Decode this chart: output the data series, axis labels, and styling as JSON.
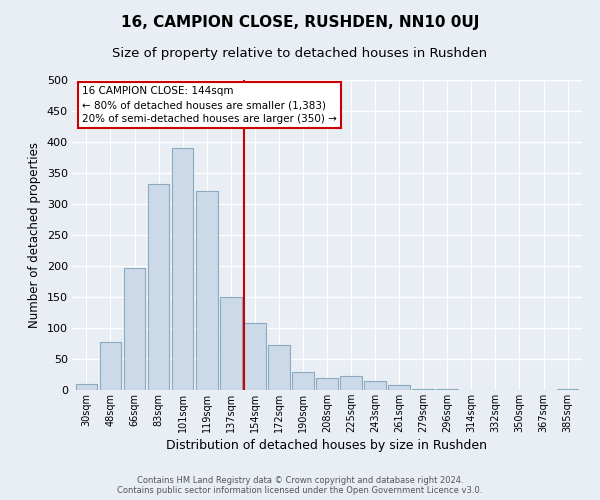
{
  "title": "16, CAMPION CLOSE, RUSHDEN, NN10 0UJ",
  "subtitle": "Size of property relative to detached houses in Rushden",
  "xlabel": "Distribution of detached houses by size in Rushden",
  "ylabel": "Number of detached properties",
  "bar_labels": [
    "30sqm",
    "48sqm",
    "66sqm",
    "83sqm",
    "101sqm",
    "119sqm",
    "137sqm",
    "154sqm",
    "172sqm",
    "190sqm",
    "208sqm",
    "225sqm",
    "243sqm",
    "261sqm",
    "279sqm",
    "296sqm",
    "314sqm",
    "332sqm",
    "350sqm",
    "367sqm",
    "385sqm"
  ],
  "bar_values": [
    10,
    78,
    196,
    333,
    390,
    321,
    150,
    108,
    73,
    29,
    20,
    23,
    15,
    8,
    2,
    1,
    0,
    0,
    0,
    0,
    1
  ],
  "bar_color": "#ccd9e8",
  "bar_edge_color": "#8aaabf",
  "vline_x_index": 7,
  "vline_color": "#cc0000",
  "annotation_line1": "16 CAMPION CLOSE: 144sqm",
  "annotation_line2": "← 80% of detached houses are smaller (1,383)",
  "annotation_line3": "20% of semi-detached houses are larger (350) →",
  "annotation_box_color": "#ffffff",
  "annotation_box_edge": "#cc0000",
  "ylim": [
    0,
    500
  ],
  "yticks": [
    0,
    50,
    100,
    150,
    200,
    250,
    300,
    350,
    400,
    450,
    500
  ],
  "footnote1": "Contains HM Land Registry data © Crown copyright and database right 2024.",
  "footnote2": "Contains public sector information licensed under the Open Government Licence v3.0.",
  "background_color": "#e8eef4",
  "plot_bg_color": "#e8eef4",
  "grid_color": "#ffffff",
  "title_fontsize": 11,
  "subtitle_fontsize": 9.5,
  "xlabel_fontsize": 9,
  "ylabel_fontsize": 8.5
}
